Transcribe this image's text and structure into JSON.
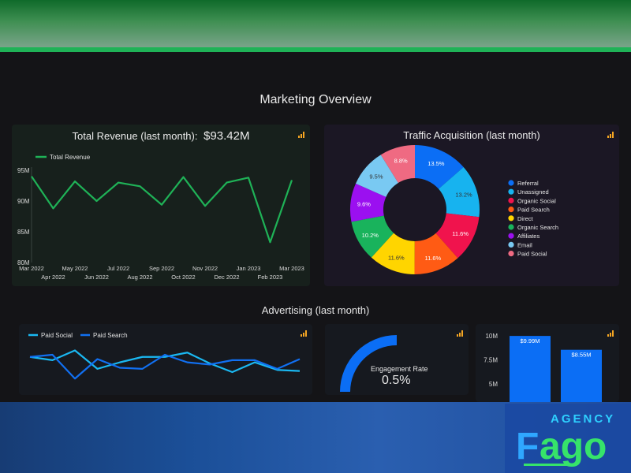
{
  "page": {
    "title": "Marketing Overview",
    "advertising_title": "Advertising (last month)"
  },
  "colors": {
    "accent": "#1fb257",
    "background": "#141417",
    "revenue_card": "#17201c",
    "traffic_card": "#1b1724",
    "ad_card": "#16191f"
  },
  "icons": [
    "bar-chart-icon"
  ],
  "revenue": {
    "label": "Total Revenue (last month):",
    "value": "$93.42M"
  },
  "traffic": {
    "title": "Traffic Acquisition (last month)"
  },
  "engagement": {
    "label": "Engagement Rate",
    "value": "0.5%",
    "fraction": 0.5
  },
  "logo": {
    "text": "AGENCY Fago"
  },
  "chart_data": [
    {
      "type": "line",
      "x": [
        "Mar 2022",
        "Apr 2022",
        "May 2022",
        "Jun 2022",
        "Jul 2022",
        "Aug 2022",
        "Sep 2022",
        "Oct 2022",
        "Nov 2022",
        "Dec 2022",
        "Jan 2023",
        "Feb 2023",
        "Mar 2023"
      ],
      "series": [
        {
          "name": "Total Revenue",
          "color": "#1fb257",
          "values": [
            94.0,
            88.8,
            93.2,
            90.0,
            93.0,
            92.4,
            89.4,
            93.9,
            89.2,
            93.0,
            93.8,
            83.3,
            93.4
          ]
        }
      ],
      "ylim": [
        80,
        95
      ],
      "yticks": [
        "80M",
        "85M",
        "90M",
        "95M"
      ],
      "legend": "top-left",
      "grid": false
    },
    {
      "type": "pie",
      "donut": true,
      "slices": [
        {
          "name": "Referral",
          "value": 13.5,
          "label": "13.5%",
          "color": "#0b6ef5"
        },
        {
          "name": "Unassigned",
          "value": 13.2,
          "label": "13.2%",
          "color": "#17b3ef"
        },
        {
          "name": "Organic Social",
          "value": 11.6,
          "label": "11.6%",
          "color": "#f0134d"
        },
        {
          "name": "Paid Search",
          "value": 11.6,
          "label": "11.6%",
          "color": "#ff5b14"
        },
        {
          "name": "Direct",
          "value": 11.6,
          "label": "11.6%",
          "color": "#ffd500"
        },
        {
          "name": "Organic Search",
          "value": 10.2,
          "label": "10.2%",
          "color": "#19b35c"
        },
        {
          "name": "Affiliates",
          "value": 9.6,
          "label": "9.6%",
          "color": "#9b10f0"
        },
        {
          "name": "Email",
          "value": 9.5,
          "label": "9.5%",
          "color": "#79c9f2"
        },
        {
          "name": "Paid Social",
          "value": 8.8,
          "label": "8.8%",
          "color": "#ef6a82"
        }
      ],
      "legend": "right"
    },
    {
      "type": "line",
      "series": [
        {
          "name": "Paid Social",
          "color": "#1ab8f2",
          "values": [
            5.0,
            4.7,
            5.6,
            3.9,
            4.5,
            5.0,
            5.0,
            5.4,
            4.4,
            3.6,
            4.5,
            3.8,
            3.7
          ]
        },
        {
          "name": "Paid Search",
          "color": "#1170f2",
          "values": [
            5.0,
            5.2,
            3.0,
            4.8,
            4.0,
            3.9,
            5.2,
            4.5,
            4.3,
            4.7,
            4.7,
            3.9,
            4.8
          ]
        }
      ],
      "legend": "top-left",
      "grid": false
    },
    {
      "type": "bar",
      "categories": [
        "",
        ""
      ],
      "values": [
        9.99,
        8.55
      ],
      "labels": [
        "$9.99M",
        "$8.55M"
      ],
      "color": "#0b6ef5",
      "yticks": [
        "5M",
        "7.5M",
        "10M"
      ]
    }
  ]
}
